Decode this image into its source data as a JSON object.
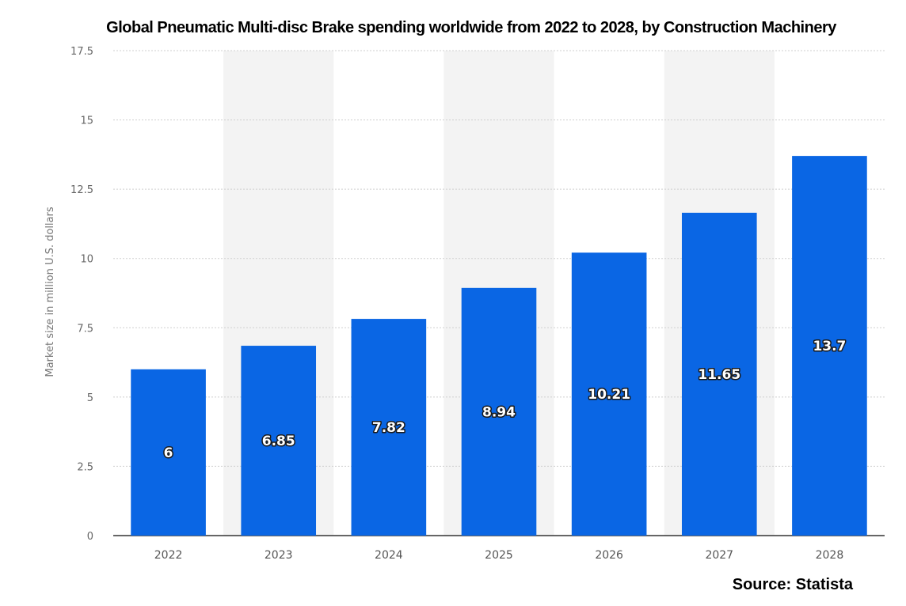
{
  "chart_data": {
    "type": "bar",
    "title": "Global Pneumatic Multi-disc Brake spending worldwide from 2022 to 2028, by Construction Machinery",
    "ylabel": "Market size in million U.S. dollars",
    "xlabel": "",
    "categories": [
      "2022",
      "2023",
      "2024",
      "2025",
      "2026",
      "2027",
      "2028"
    ],
    "values": [
      6,
      6.85,
      7.82,
      8.94,
      10.21,
      11.65,
      13.7
    ],
    "value_labels": [
      "6",
      "6.85",
      "7.82",
      "8.94",
      "10.21",
      "11.65",
      "13.7"
    ],
    "ylim": [
      0,
      17.5
    ],
    "yticks": [
      0,
      2.5,
      5,
      7.5,
      10,
      12.5,
      15,
      17.5
    ],
    "ytick_labels": [
      "0",
      "2.5",
      "5",
      "7.5",
      "10",
      "12.5",
      "15",
      "17.5"
    ],
    "grid": true,
    "bar_color": "#0a66e4",
    "band_color": "#f3f3f3",
    "source": "Source: Statista"
  }
}
